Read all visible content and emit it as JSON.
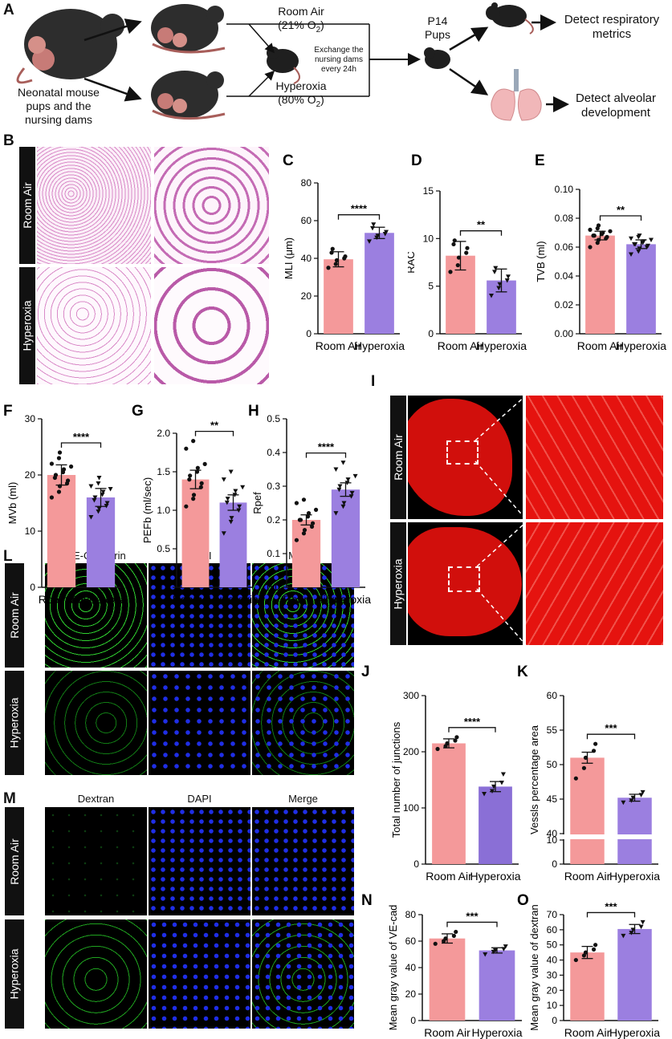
{
  "panels": {
    "A": {
      "letter": "A",
      "start_label": "Neonatal mouse pups and the nursing dams",
      "room_air_label": "Room Air",
      "room_air_o2": "(21% O",
      "hyperoxia_label": "Hyperoxia",
      "hyperoxia_o2": "(80% O",
      "o2_sub": "2",
      "o2_close": ")",
      "exchange_note": "Exchange the nursing dams every 24h",
      "p14_label": "P14 Pups",
      "detect_resp": "Detect respiratory metrics",
      "detect_alv": "Detect alveolar development"
    },
    "B": {
      "letter": "B",
      "rows": [
        "Room Air",
        "Hyperoxia"
      ]
    },
    "I": {
      "letter": "I",
      "rows": [
        "Room Air",
        "Hyperoxia"
      ]
    },
    "L": {
      "letter": "L",
      "columns": [
        "VE-Cadherin",
        "DAPI",
        "Merge"
      ],
      "rows": [
        "Room Air",
        "Hyperoxia"
      ]
    },
    "M": {
      "letter": "M",
      "columns": [
        "Dextran",
        "DAPI",
        "Merge"
      ],
      "rows": [
        "Room Air",
        "Hyperoxia"
      ]
    }
  },
  "colors": {
    "room_air_bar": "#f4999a",
    "hyperoxia_bar": "#9b7fe0",
    "hyperoxia_bar_dark": "#8a6fd6",
    "he_stain": "#d98ac8",
    "dextran_red": "#e5130f"
  },
  "chart_data": [
    {
      "id": "C",
      "letter": "C",
      "type": "bar",
      "categories": [
        "Room Air",
        "Hyperoxia"
      ],
      "values": [
        39.5,
        53.5
      ],
      "errors": [
        4,
        3
      ],
      "ylabel": "MLI (μm)",
      "ylim": [
        0,
        80
      ],
      "yticks": [
        "0",
        "20",
        "40",
        "60",
        "80"
      ],
      "significance": "****",
      "points": [
        [
          35,
          37,
          39,
          40,
          41,
          43,
          45
        ],
        [
          49,
          51,
          52,
          53,
          54,
          56,
          58
        ]
      ]
    },
    {
      "id": "D",
      "letter": "D",
      "type": "bar",
      "categories": [
        "Room Air",
        "Hyperoxia"
      ],
      "values": [
        8.2,
        5.6
      ],
      "errors": [
        1.5,
        1.2
      ],
      "ylabel": "RAC",
      "ylim": [
        0,
        15
      ],
      "yticks": [
        "0",
        "5",
        "10",
        "15"
      ],
      "significance": "**",
      "points": [
        [
          6.5,
          7.2,
          8.0,
          8.5,
          9.0,
          9.4,
          9.8
        ],
        [
          4.0,
          4.8,
          5.2,
          5.6,
          6.0,
          6.5,
          6.9
        ]
      ]
    },
    {
      "id": "E",
      "letter": "E",
      "type": "bar",
      "categories": [
        "Room Air",
        "Hyperoxia"
      ],
      "values": [
        0.068,
        0.062
      ],
      "errors": [
        0.003,
        0.003
      ],
      "ylabel": "TVB (ml)",
      "ylim": [
        0,
        0.1
      ],
      "yticks": [
        "0.00",
        "0.02",
        "0.04",
        "0.06",
        "0.08",
        "0.10"
      ],
      "significance": "**",
      "points": [
        [
          0.06,
          0.063,
          0.065,
          0.066,
          0.067,
          0.068,
          0.068,
          0.069,
          0.07,
          0.071,
          0.072,
          0.073,
          0.075
        ],
        [
          0.055,
          0.057,
          0.059,
          0.06,
          0.061,
          0.062,
          0.062,
          0.063,
          0.064,
          0.065,
          0.066,
          0.067,
          0.068
        ]
      ]
    },
    {
      "id": "F",
      "letter": "F",
      "type": "bar",
      "categories": [
        "Room Air",
        "Hyperoxia"
      ],
      "values": [
        20,
        16
      ],
      "errors": [
        1.8,
        1.6
      ],
      "ylabel": "MVb (ml)",
      "ylim": [
        0,
        30
      ],
      "yticks": [
        "0",
        "10",
        "20",
        "30"
      ],
      "significance": "****",
      "points": [
        [
          16,
          17,
          18,
          18.5,
          19,
          19.5,
          20,
          20.5,
          21,
          21.5,
          22,
          23,
          24
        ],
        [
          12.5,
          13.5,
          14,
          14.5,
          15,
          15.5,
          16,
          16.5,
          17,
          17.5,
          18,
          18.5,
          19.5
        ]
      ]
    },
    {
      "id": "G",
      "letter": "G",
      "type": "bar",
      "categories": [
        "Room Air",
        "Hyperoxia"
      ],
      "values": [
        1.4,
        1.1
      ],
      "errors": [
        0.12,
        0.1
      ],
      "ylabel": "PEFb (ml/sec)",
      "ylim": [
        0,
        2.0
      ],
      "yticks": [
        "0.0",
        "0.5",
        "1.0",
        "1.5",
        "2.0"
      ],
      "significance": "**",
      "points": [
        [
          1.05,
          1.15,
          1.2,
          1.3,
          1.35,
          1.4,
          1.45,
          1.5,
          1.55,
          1.6,
          1.8,
          1.9
        ],
        [
          0.7,
          0.85,
          0.9,
          1.0,
          1.05,
          1.1,
          1.15,
          1.2,
          1.25,
          1.3,
          1.4,
          1.5
        ]
      ]
    },
    {
      "id": "H",
      "letter": "H",
      "type": "bar",
      "categories": [
        "Room Air",
        "Hyperoxia"
      ],
      "values": [
        0.2,
        0.29
      ],
      "errors": [
        0.015,
        0.02
      ],
      "ylabel": "Rpef",
      "ylim": [
        0,
        0.5
      ],
      "yticks": [
        "0.0",
        "0.1",
        "0.2",
        "0.3",
        "0.4",
        "0.5"
      ],
      "significance": "****",
      "points": [
        [
          0.14,
          0.16,
          0.17,
          0.18,
          0.19,
          0.2,
          0.2,
          0.21,
          0.22,
          0.23,
          0.25,
          0.26
        ],
        [
          0.22,
          0.24,
          0.25,
          0.27,
          0.28,
          0.29,
          0.3,
          0.31,
          0.32,
          0.33,
          0.35,
          0.37
        ]
      ]
    },
    {
      "id": "J",
      "letter": "J",
      "type": "bar",
      "categories": [
        "Room Air",
        "Hyperoxia"
      ],
      "values": [
        215,
        138
      ],
      "errors": [
        8,
        9
      ],
      "ylabel": "Total number of junctions",
      "ylim": [
        0,
        300
      ],
      "yticks": [
        "0",
        "100",
        "200",
        "300"
      ],
      "significance": "****",
      "points": [
        [
          205,
          210,
          215,
          220,
          226
        ],
        [
          125,
          130,
          138,
          145,
          160
        ]
      ]
    },
    {
      "id": "K",
      "letter": "K",
      "type": "bar",
      "broken_axis": true,
      "categories": [
        "Room Air",
        "Hyperoxia"
      ],
      "values": [
        51,
        45.2
      ],
      "errors": [
        0.8,
        0.5
      ],
      "ylabel": "Vessls percentage area",
      "ylim_upper": [
        40,
        60
      ],
      "ylim_lower": [
        0,
        10
      ],
      "yticks_upper": [
        "40",
        "45",
        "50",
        "55",
        "60"
      ],
      "yticks_lower": [
        "0",
        "10"
      ],
      "significance": "***",
      "points": [
        [
          48,
          49.5,
          51,
          52,
          53
        ],
        [
          44.5,
          44.8,
          45.2,
          45.6,
          46
        ]
      ]
    },
    {
      "id": "N",
      "letter": "N",
      "type": "bar",
      "categories": [
        "Room Air",
        "Hyperoxia"
      ],
      "values": [
        62,
        53
      ],
      "errors": [
        3.5,
        2
      ],
      "ylabel": "Mean gray value of VE-cad",
      "ylim": [
        0,
        80
      ],
      "yticks": [
        "0",
        "20",
        "40",
        "60",
        "80"
      ],
      "significance": "***",
      "points": [
        [
          58,
          60,
          62,
          64,
          67
        ],
        [
          50,
          52,
          53,
          54,
          56
        ]
      ]
    },
    {
      "id": "O",
      "letter": "O",
      "type": "bar",
      "categories": [
        "Room Air",
        "Hyperoxia"
      ],
      "values": [
        45,
        60.5
      ],
      "errors": [
        4,
        3
      ],
      "ylabel": "Mean gray value of dextran",
      "ylim": [
        0,
        70
      ],
      "yticks": [
        "0",
        "10",
        "20",
        "30",
        "40",
        "50",
        "60",
        "70"
      ],
      "significance": "***",
      "points": [
        [
          40,
          43,
          45,
          47,
          50
        ],
        [
          56,
          58,
          60,
          62,
          65
        ]
      ]
    }
  ]
}
